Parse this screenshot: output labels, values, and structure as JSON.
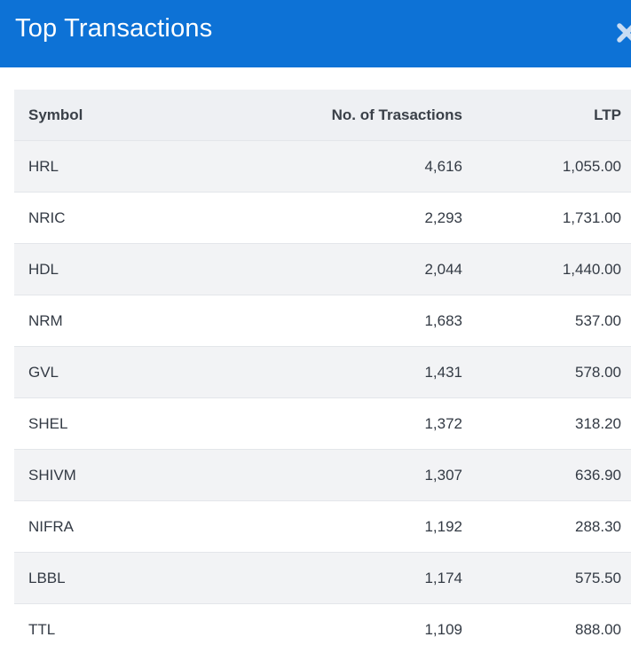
{
  "header": {
    "title": "Top Transactions",
    "close_icon": "close-icon",
    "color": "#0d72d6"
  },
  "table": {
    "columns": [
      "Symbol",
      "No. of Trasactions",
      "LTP"
    ],
    "rows": [
      {
        "symbol": "HRL",
        "transactions": "4,616",
        "ltp": "1,055.00"
      },
      {
        "symbol": "NRIC",
        "transactions": "2,293",
        "ltp": "1,731.00"
      },
      {
        "symbol": "HDL",
        "transactions": "2,044",
        "ltp": "1,440.00"
      },
      {
        "symbol": "NRM",
        "transactions": "1,683",
        "ltp": "537.00"
      },
      {
        "symbol": "GVL",
        "transactions": "1,431",
        "ltp": "578.00"
      },
      {
        "symbol": "SHEL",
        "transactions": "1,372",
        "ltp": "318.20"
      },
      {
        "symbol": "SHIVM",
        "transactions": "1,307",
        "ltp": "636.90"
      },
      {
        "symbol": "NIFRA",
        "transactions": "1,192",
        "ltp": "288.30"
      },
      {
        "symbol": "LBBL",
        "transactions": "1,174",
        "ltp": "575.50"
      },
      {
        "symbol": "TTL",
        "transactions": "1,109",
        "ltp": "888.00"
      }
    ]
  }
}
